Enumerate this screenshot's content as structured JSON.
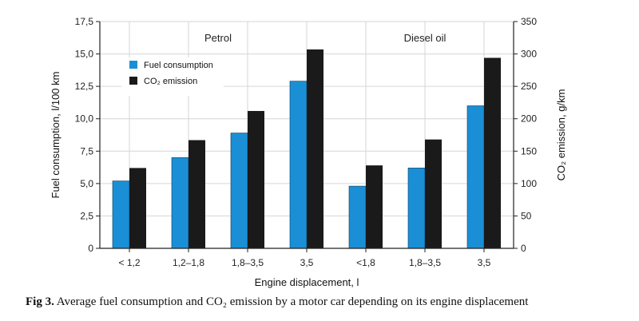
{
  "chart_data": {
    "type": "bar",
    "categories": [
      "< 1,2",
      "1,2–1,8",
      "1,8–3,5",
      "3,5",
      "<1,8",
      "1,8–3,5",
      "3,5"
    ],
    "groups": [
      {
        "label": "Petrol",
        "categories": [
          "< 1,2",
          "1,2–1,8",
          "1,8–3,5",
          "3,5"
        ]
      },
      {
        "label": "Diesel oil",
        "categories": [
          "<1,8",
          "1,8–3,5",
          "3,5"
        ]
      }
    ],
    "series": [
      {
        "name": "Fuel consumption",
        "axis": "left",
        "color": "#1a8fd6",
        "values": [
          5.2,
          7.0,
          8.9,
          12.9,
          4.8,
          6.2,
          11.0
        ]
      },
      {
        "name": "CO₂ emission",
        "axis": "right",
        "color": "#1a1a1a",
        "values": [
          124,
          167,
          212,
          307,
          128,
          168,
          294
        ]
      }
    ],
    "xlabel": "Engine displacement, l",
    "ylabel_left": "Fuel consumption, l/100 km",
    "ylabel_right": "CO₂ emission, g/km",
    "ylim_left": [
      0,
      17.5
    ],
    "ylim_right": [
      0,
      350
    ],
    "yticks_left": [
      "0",
      "2,5",
      "5,0",
      "7,5",
      "10,0",
      "12,5",
      "15,0",
      "17,5"
    ],
    "yticks_right": [
      "0",
      "50",
      "100",
      "150",
      "200",
      "250",
      "300",
      "350"
    ],
    "grid": true,
    "legend_position": "top-left"
  },
  "caption": {
    "label": "Fig 3.",
    "text": "Average fuel consumption and CO₂ emission by a motor car depending on its engine displacement"
  }
}
